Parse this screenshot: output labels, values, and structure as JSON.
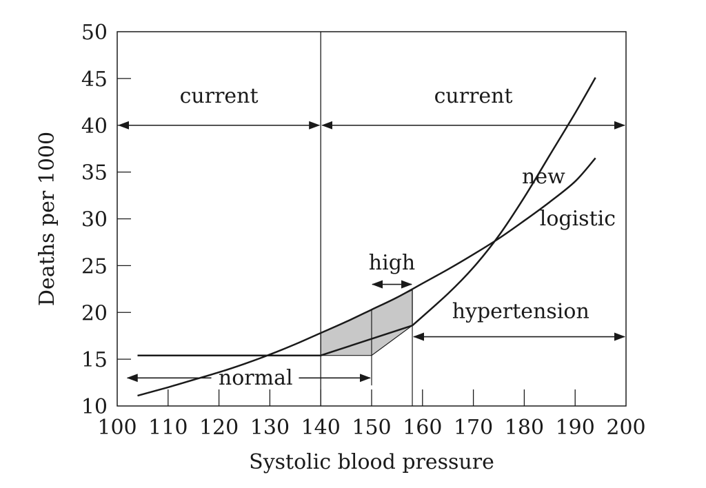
{
  "chart_data": {
    "type": "line",
    "title": "",
    "xlabel": "Systolic blood pressure",
    "ylabel": "Deaths per 1000",
    "xlim": [
      100,
      200
    ],
    "ylim": [
      10,
      50
    ],
    "xticks": [
      "100",
      "110",
      "120",
      "130",
      "140",
      "150",
      "160",
      "170",
      "180",
      "190",
      "200"
    ],
    "yticks": [
      "10",
      "15",
      "20",
      "25",
      "30",
      "35",
      "40",
      "45",
      "50"
    ],
    "grid": false,
    "series": [
      {
        "name": "new",
        "x": [
          104,
          140,
          158
        ],
        "y": [
          15.4,
          15.4,
          18.6
        ],
        "x2": [
          158,
          165,
          170,
          175,
          180,
          185,
          190,
          194
        ],
        "y2": [
          18.6,
          22.0,
          24.8,
          28.2,
          32.3,
          36.8,
          41.3,
          45.1
        ]
      },
      {
        "name": "logistic",
        "x": [
          104,
          110,
          115,
          120,
          125,
          130,
          135,
          140,
          145,
          150,
          155,
          160,
          165,
          170,
          175,
          180,
          185,
          190,
          194
        ],
        "y": [
          11.1,
          12.0,
          12.8,
          13.6,
          14.5,
          15.5,
          16.6,
          17.8,
          19.0,
          20.3,
          21.6,
          23.1,
          24.6,
          26.2,
          27.9,
          29.8,
          31.8,
          34.0,
          36.5
        ]
      }
    ],
    "annotations": {
      "current_left": "current",
      "current_right": "current",
      "high": "high",
      "normal": "normal",
      "hypertension": "hypertension",
      "new_label": "new",
      "logistic_label": "logistic"
    },
    "threshold_x": 140,
    "ranges": {
      "current_left": [
        100,
        140
      ],
      "current_right": [
        140,
        200
      ],
      "normal": [
        102,
        150
      ],
      "high": [
        150,
        158
      ],
      "hypertension": [
        158,
        200
      ]
    },
    "shaded_region": {
      "x": [
        140,
        150,
        158
      ],
      "lower": [
        15.4,
        15.4,
        18.6
      ],
      "upper": [
        17.8,
        20.3,
        22.4
      ]
    },
    "colors": {
      "line": "#1a1a1a",
      "shade": "#c8c8c8",
      "background": "#ffffff"
    }
  }
}
